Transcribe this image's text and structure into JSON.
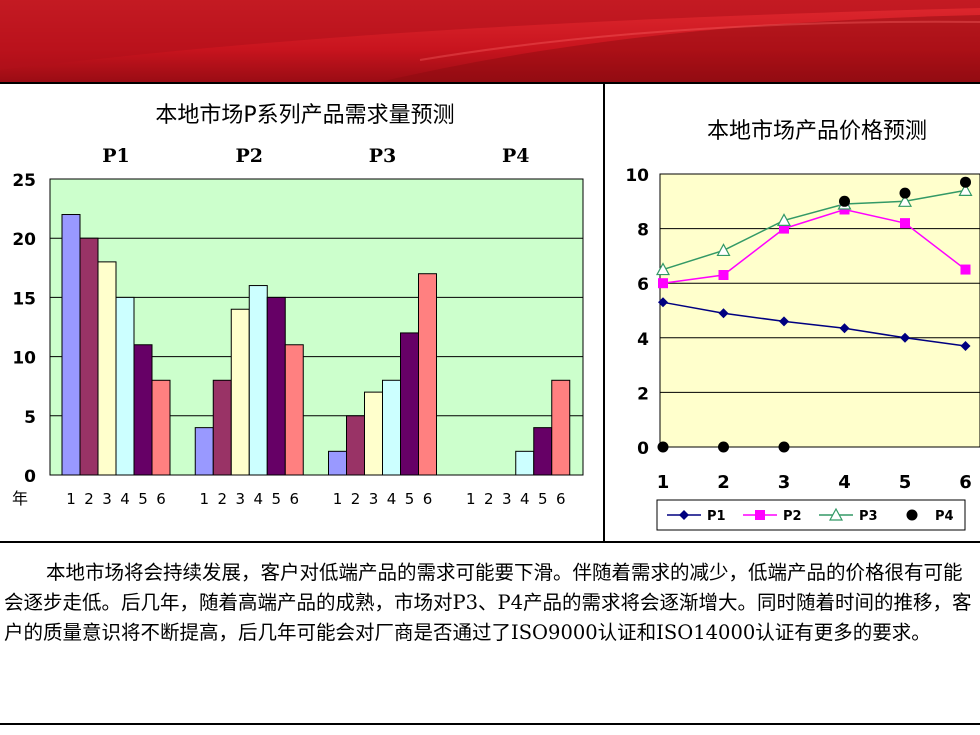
{
  "colors": {
    "banner_red": "#c8141e",
    "banner_dark": "#8a0a10",
    "chart1_plot_bg": "#ccffcc",
    "chart2_plot_bg": "#ffffcc",
    "bar_colors": [
      "#9999ff",
      "#993366",
      "#ffffcc",
      "#ccffff",
      "#660066",
      "#ff8080"
    ],
    "p1_line": "#000080",
    "p2_line": "#ff00ff",
    "p3_line": "#339966",
    "p4_marker": "#000000"
  },
  "chart_data": [
    {
      "type": "bar",
      "title": "本地市场P系列产品需求量预测",
      "groups": [
        "P1",
        "P2",
        "P3",
        "P4"
      ],
      "year_label": "年",
      "year_ticks": [
        "1",
        "2",
        "3",
        "4",
        "5",
        "6"
      ],
      "ylim": [
        0,
        25
      ],
      "yticks": [
        "0",
        "5",
        "10",
        "15",
        "20",
        "25"
      ],
      "grid": true,
      "series": [
        {
          "group": "P1",
          "values": [
            22,
            20,
            18,
            15,
            11,
            8
          ]
        },
        {
          "group": "P2",
          "values": [
            4,
            8,
            14,
            16,
            15,
            11
          ]
        },
        {
          "group": "P3",
          "values": [
            2,
            5,
            7,
            8,
            12,
            17
          ]
        },
        {
          "group": "P4",
          "values": [
            0,
            0,
            0,
            2,
            4,
            8
          ]
        }
      ]
    },
    {
      "type": "line",
      "title": "本地市场产品价格预测",
      "x": [
        "1",
        "2",
        "3",
        "4",
        "5",
        "6"
      ],
      "ylim": [
        0,
        10
      ],
      "yticks": [
        "0",
        "2",
        "4",
        "6",
        "8",
        "10"
      ],
      "grid": true,
      "legend_position": "bottom",
      "series": [
        {
          "name": "P1",
          "marker": "diamond",
          "values": [
            5.3,
            4.9,
            4.6,
            4.35,
            4.0,
            3.7
          ]
        },
        {
          "name": "P2",
          "marker": "square",
          "values": [
            6.0,
            6.3,
            8.0,
            8.7,
            8.2,
            6.5
          ]
        },
        {
          "name": "P3",
          "marker": "triangle",
          "values": [
            6.5,
            7.2,
            8.3,
            8.9,
            9.0,
            9.4
          ]
        },
        {
          "name": "P4",
          "marker": "dot",
          "values": [
            0,
            0,
            0,
            9.0,
            9.3,
            9.7
          ]
        }
      ]
    }
  ],
  "description": "本地市场将会持续发展，客户对低端产品的需求可能要下滑。伴随着需求的减少，低端产品的价格很有可能会逐步走低。后几年，随着高端产品的成熟，市场对P3、P4产品的需求将会逐渐增大。同时随着时间的推移，客户的质量意识将不断提高，后几年可能会对厂商是否通过了ISO9000认证和ISO14000认证有更多的要求。"
}
